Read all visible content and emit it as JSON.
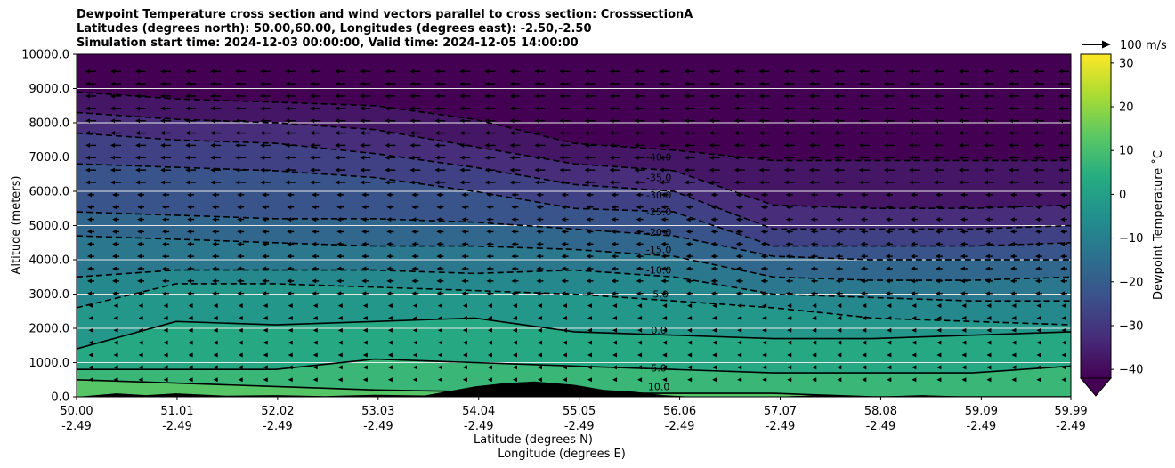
{
  "chart_data": {
    "type": "contourf",
    "title_lines": [
      "Dewpoint Temperature cross section and wind vectors parallel to cross section: CrosssectionA",
      "Latitudes (degrees north): 50.00,60.00, Longitudes (degrees east): -2.50,-2.50",
      "Simulation start time: 2024-12-03 00:00:00, Valid time: 2024-12-05 14:00:00"
    ],
    "ylabel": "Altitude (meters)",
    "xlabel_lat": "Latitude (degrees N)",
    "xlabel_lon": "Longitude (degrees E)",
    "ylim": [
      0,
      10000
    ],
    "y_ticks": [
      "0.0",
      "1000.0",
      "2000.0",
      "3000.0",
      "4000.0",
      "5000.0",
      "6000.0",
      "7000.0",
      "8000.0",
      "9000.0",
      "10000.0"
    ],
    "x_ticks_lat": [
      "50.00",
      "51.01",
      "52.02",
      "53.03",
      "54.04",
      "55.05",
      "56.06",
      "57.07",
      "58.08",
      "59.09",
      "59.99"
    ],
    "x_ticks_lon": [
      "-2.49",
      "-2.49",
      "-2.49",
      "-2.49",
      "-2.49",
      "-2.49",
      "-2.49",
      "-2.49",
      "-2.49",
      "-2.49",
      "-2.49"
    ],
    "quiver_key": "100 m/s",
    "colorbar": {
      "label": "Dewpoint Temperature ˚C",
      "ticks": [
        "30",
        "20",
        "10",
        "0",
        "−10",
        "−20",
        "−30",
        "−40"
      ],
      "range": [
        -42,
        32
      ],
      "extend": "min",
      "colormap": "viridis"
    },
    "contour_labels": [
      {
        "value": "-40.0",
        "alt": 7000
      },
      {
        "value": "-35.0",
        "alt": 6400
      },
      {
        "value": "-30.0",
        "alt": 5900
      },
      {
        "value": "-25.0",
        "alt": 5400
      },
      {
        "value": "-20.0",
        "alt": 4800
      },
      {
        "value": "-15.0",
        "alt": 4300
      },
      {
        "value": "-10.0",
        "alt": 3700
      },
      {
        "value": "-5.0",
        "alt": 3000
      },
      {
        "value": "0.0",
        "alt": 1950
      },
      {
        "value": "5.0",
        "alt": 850
      },
      {
        "value": "10.0",
        "alt": 300
      }
    ],
    "level_profiles": {
      "value_levels": [
        -40,
        -35,
        -30,
        -25,
        -20,
        -15,
        -10,
        -5,
        0,
        5,
        10
      ],
      "lat": [
        50.0,
        51.0,
        52.0,
        53.0,
        54.0,
        55.0,
        56.0,
        57.0,
        58.0,
        59.0,
        60.0
      ],
      "alt_m": [
        [
          8900,
          8700,
          8600,
          8500,
          8100,
          7400,
          7200,
          6900,
          6900,
          6900,
          6900
        ],
        [
          8300,
          8100,
          8000,
          7800,
          7300,
          6800,
          6600,
          5600,
          5500,
          5500,
          5600
        ],
        [
          7700,
          7500,
          7400,
          7100,
          6700,
          6200,
          6000,
          4900,
          4900,
          4900,
          5000
        ],
        [
          6800,
          6700,
          6600,
          6400,
          6000,
          5500,
          5400,
          4400,
          4400,
          4400,
          4500
        ],
        [
          5400,
          5300,
          5200,
          5200,
          5100,
          4900,
          4700,
          4100,
          4000,
          4000,
          4000
        ],
        [
          4700,
          4600,
          4500,
          4400,
          4400,
          4300,
          4100,
          3500,
          3400,
          3400,
          3500
        ],
        [
          3500,
          3700,
          3700,
          3700,
          3600,
          3700,
          3500,
          3000,
          2900,
          2800,
          2800
        ],
        [
          2600,
          3300,
          3300,
          3200,
          3100,
          3000,
          2800,
          2600,
          2300,
          2200,
          2100
        ],
        [
          1400,
          2200,
          2100,
          2200,
          2300,
          1900,
          1800,
          1700,
          1700,
          1800,
          1900
        ],
        [
          800,
          800,
          800,
          1100,
          1000,
          900,
          800,
          700,
          700,
          700,
          900
        ],
        [
          500,
          400,
          300,
          200,
          150,
          100,
          100,
          100,
          0,
          0,
          0
        ]
      ]
    },
    "terrain": {
      "lat": [
        50.0,
        50.4,
        50.7,
        51.0,
        51.5,
        52.0,
        52.5,
        53.0,
        53.5,
        54.0,
        54.3,
        54.6,
        55.0,
        55.3,
        55.6,
        55.9,
        56.2,
        57.0,
        57.5,
        58.0,
        58.5,
        59.0,
        59.5,
        59.99
      ],
      "alt_m": [
        0,
        100,
        50,
        100,
        30,
        50,
        20,
        60,
        40,
        300,
        400,
        450,
        350,
        200,
        150,
        50,
        0,
        0,
        50,
        0,
        50,
        0,
        0,
        0
      ]
    }
  }
}
